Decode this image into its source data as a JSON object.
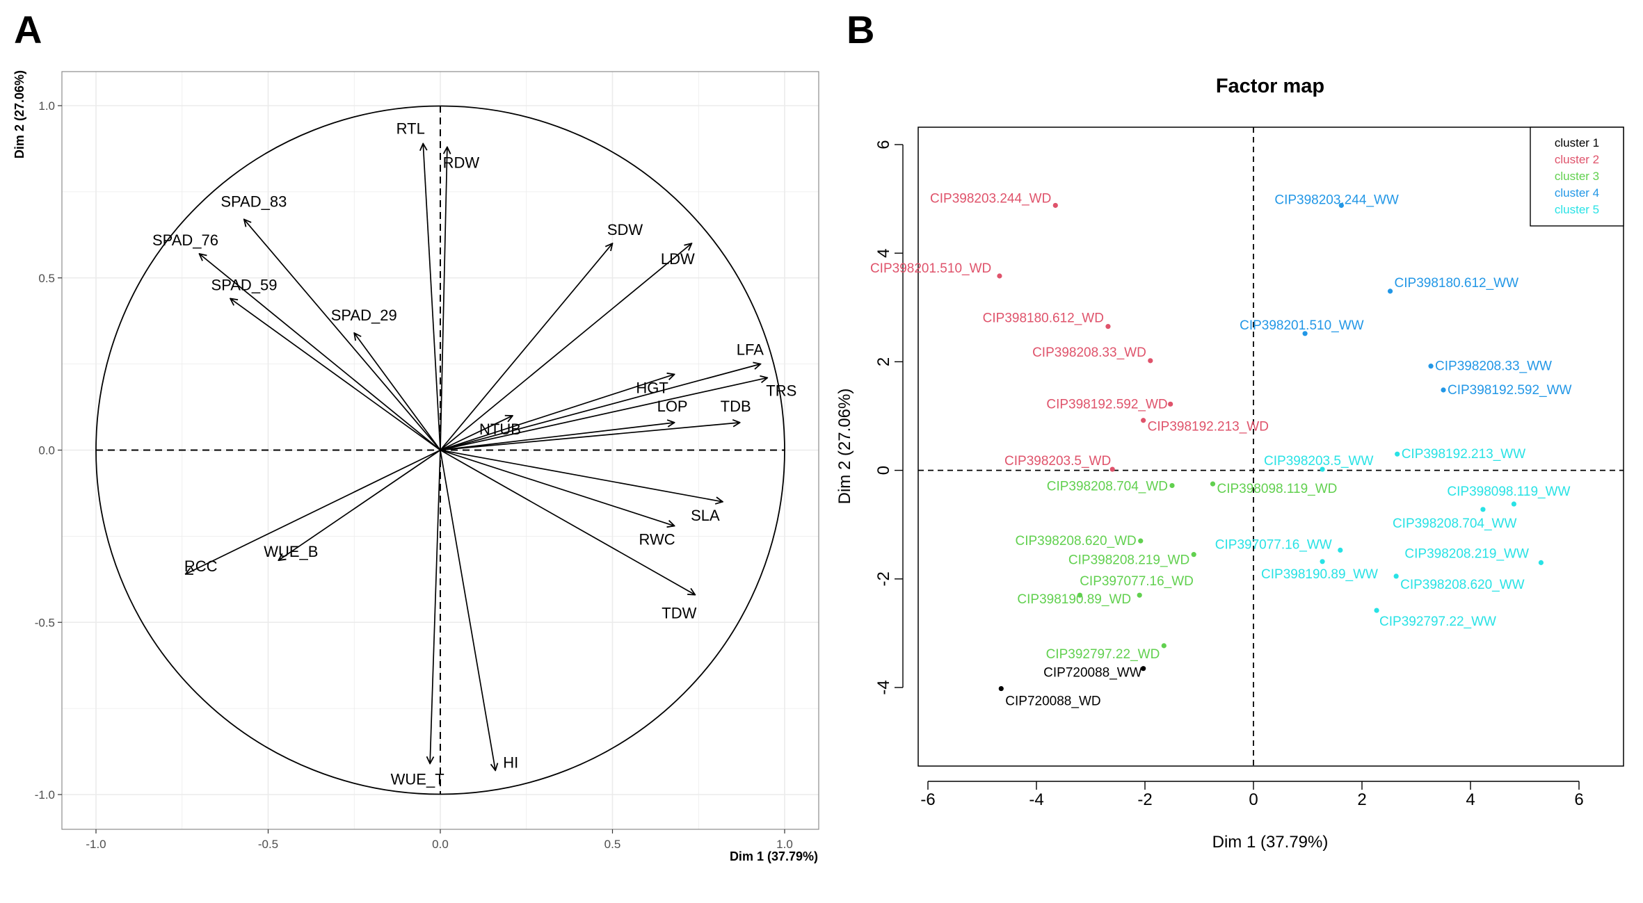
{
  "panels": {
    "a_letter": "A",
    "b_letter": "B"
  },
  "colors": {
    "cluster 1": "#000000",
    "cluster 2": "#df536b",
    "cluster 3": "#61d04f",
    "cluster 4": "#2297e6",
    "cluster 5": "#28e2e5",
    "grid": "#ebebeb"
  },
  "chart_data": [
    {
      "type": "scatter",
      "subtype": "pca-variables-correlation-circle",
      "title": "",
      "xlabel": "Dim 1 (37.79%)",
      "ylabel": "Dim 2 (27.06%)",
      "xlim": [
        -1.0,
        1.0
      ],
      "ylim": [
        -1.0,
        1.0
      ],
      "xticks": [
        "-1.0",
        "-0.5",
        "0.0",
        "0.5",
        "1.0"
      ],
      "yticks": [
        "-1.0",
        "-0.5",
        "0.0",
        "0.5",
        "1.0"
      ],
      "grid": true,
      "unit_circle": true,
      "variables": [
        {
          "name": "RTL",
          "x": -0.05,
          "y": 0.89
        },
        {
          "name": "RDW",
          "x": 0.02,
          "y": 0.88
        },
        {
          "name": "SPAD_83",
          "x": -0.57,
          "y": 0.67
        },
        {
          "name": "SPAD_76",
          "x": -0.7,
          "y": 0.57
        },
        {
          "name": "SPAD_59",
          "x": -0.61,
          "y": 0.44
        },
        {
          "name": "SPAD_29",
          "x": -0.25,
          "y": 0.34
        },
        {
          "name": "SDW",
          "x": 0.5,
          "y": 0.6
        },
        {
          "name": "LDW",
          "x": 0.73,
          "y": 0.6
        },
        {
          "name": "LFA",
          "x": 0.93,
          "y": 0.25
        },
        {
          "name": "TRS",
          "x": 0.95,
          "y": 0.21
        },
        {
          "name": "HGT",
          "x": 0.68,
          "y": 0.22
        },
        {
          "name": "LOP",
          "x": 0.68,
          "y": 0.08
        },
        {
          "name": "TDB",
          "x": 0.87,
          "y": 0.08
        },
        {
          "name": "NTUB",
          "x": 0.21,
          "y": 0.1
        },
        {
          "name": "SLA",
          "x": 0.82,
          "y": -0.15
        },
        {
          "name": "RWC",
          "x": 0.68,
          "y": -0.22
        },
        {
          "name": "TDW",
          "x": 0.74,
          "y": -0.42
        },
        {
          "name": "RCC",
          "x": -0.74,
          "y": -0.36
        },
        {
          "name": "WUE_B",
          "x": -0.47,
          "y": -0.32
        },
        {
          "name": "WUE_T",
          "x": -0.03,
          "y": -0.91
        },
        {
          "name": "HI",
          "x": 0.16,
          "y": -0.93
        }
      ]
    },
    {
      "type": "scatter",
      "title": "Factor map",
      "xlabel": "Dim 1 (37.79%)",
      "ylabel": "Dim 2 (27.06%)",
      "xlim": [
        -6.2,
        6.8
      ],
      "ylim": [
        -5.5,
        6.4
      ],
      "xticks": [
        "-6",
        "-4",
        "-2",
        "0",
        "2",
        "4",
        "6"
      ],
      "yticks": [
        "-4",
        "-2",
        "0",
        "2",
        "4",
        "6"
      ],
      "grid": false,
      "legend_position": "top-right",
      "legend": [
        "cluster 1",
        "cluster 2",
        "cluster 3",
        "cluster 4",
        "cluster 5"
      ],
      "points": [
        {
          "label": "CIP720088_WW",
          "x": -2.03,
          "y": -3.65,
          "cluster": "cluster 1"
        },
        {
          "label": "CIP720088_WD",
          "x": -4.65,
          "y": -4.02,
          "cluster": "cluster 1"
        },
        {
          "label": "CIP398203.244_WD",
          "x": -3.65,
          "y": 4.88,
          "cluster": "cluster 2"
        },
        {
          "label": "CIP398201.510_WD",
          "x": -4.68,
          "y": 3.58,
          "cluster": "cluster 2"
        },
        {
          "label": "CIP398180.612_WD",
          "x": -2.68,
          "y": 2.65,
          "cluster": "cluster 2"
        },
        {
          "label": "CIP398208.33_WD",
          "x": -1.9,
          "y": 2.02,
          "cluster": "cluster 2"
        },
        {
          "label": "CIP398192.592_WD",
          "x": -1.53,
          "y": 1.22,
          "cluster": "cluster 2"
        },
        {
          "label": "CIP398192.213_WD",
          "x": -2.03,
          "y": 0.92,
          "cluster": "cluster 2"
        },
        {
          "label": "CIP398203.5_WD",
          "x": -2.6,
          "y": 0.02,
          "cluster": "cluster 2"
        },
        {
          "label": "CIP398208.704_WD",
          "x": -1.5,
          "y": -0.28,
          "cluster": "cluster 3"
        },
        {
          "label": "CIP398098.119_WD",
          "x": -0.75,
          "y": -0.25,
          "cluster": "cluster 3"
        },
        {
          "label": "CIP398208.620_WD",
          "x": -2.08,
          "y": -1.3,
          "cluster": "cluster 3"
        },
        {
          "label": "CIP398208.219_WD",
          "x": -1.1,
          "y": -1.55,
          "cluster": "cluster 3"
        },
        {
          "label": "CIP397077.16_WD",
          "x": -2.1,
          "y": -2.3,
          "cluster": "cluster 3"
        },
        {
          "label": "CIP398190.89_WD",
          "x": -3.2,
          "y": -2.3,
          "cluster": "cluster 3"
        },
        {
          "label": "CIP392797.22_WD",
          "x": -1.65,
          "y": -3.23,
          "cluster": "cluster 3"
        },
        {
          "label": "CIP398203.244_WW",
          "x": 1.62,
          "y": 4.88,
          "cluster": "cluster 4"
        },
        {
          "label": "CIP398180.612_WW",
          "x": 2.52,
          "y": 3.3,
          "cluster": "cluster 4"
        },
        {
          "label": "CIP398201.510_WW",
          "x": 0.95,
          "y": 2.52,
          "cluster": "cluster 4"
        },
        {
          "label": "CIP398208.33_WW",
          "x": 3.27,
          "y": 1.92,
          "cluster": "cluster 4"
        },
        {
          "label": "CIP398192.592_WW",
          "x": 3.5,
          "y": 1.48,
          "cluster": "cluster 4"
        },
        {
          "label": "CIP398203.5_WW",
          "x": 1.27,
          "y": 0.02,
          "cluster": "cluster 5"
        },
        {
          "label": "CIP398192.213_WW",
          "x": 2.65,
          "y": 0.3,
          "cluster": "cluster 5"
        },
        {
          "label": "CIP398098.119_WW",
          "x": 4.8,
          "y": -0.62,
          "cluster": "cluster 5"
        },
        {
          "label": "CIP398208.704_WW",
          "x": 4.23,
          "y": -0.72,
          "cluster": "cluster 5"
        },
        {
          "label": "CIP397077.16_WW",
          "x": 1.6,
          "y": -1.47,
          "cluster": "cluster 5"
        },
        {
          "label": "CIP398190.89_WW",
          "x": 1.27,
          "y": -1.68,
          "cluster": "cluster 5"
        },
        {
          "label": "CIP398208.219_WW",
          "x": 5.3,
          "y": -1.7,
          "cluster": "cluster 5"
        },
        {
          "label": "CIP398208.620_WW",
          "x": 2.63,
          "y": -1.95,
          "cluster": "cluster 5"
        },
        {
          "label": "CIP392797.22_WW",
          "x": 2.27,
          "y": -2.58,
          "cluster": "cluster 5"
        }
      ]
    }
  ]
}
